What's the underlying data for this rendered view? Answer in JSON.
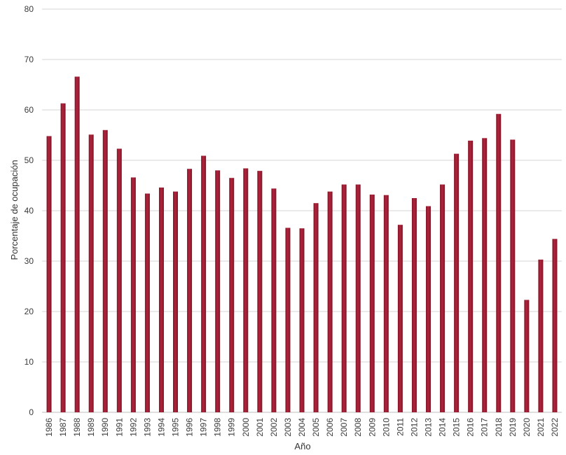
{
  "chart_data": {
    "type": "bar",
    "title": "",
    "xlabel": "Año",
    "ylabel": "Porcentaje de ocupación",
    "ylim": [
      0,
      80
    ],
    "yticks": [
      0,
      10,
      20,
      30,
      40,
      50,
      60,
      70,
      80
    ],
    "grid": true,
    "legend": "none",
    "colors": {
      "bar": "#b2243c",
      "bar_shade": "#7e1628",
      "grid": "#d4d4d4"
    },
    "categories": [
      "1986",
      "1987",
      "1988",
      "1989",
      "1990",
      "1991",
      "1992",
      "1993",
      "1994",
      "1995",
      "1996",
      "1997",
      "1998",
      "1999",
      "2000",
      "2001",
      "2002",
      "2003",
      "2004",
      "2005",
      "2006",
      "2007",
      "2008",
      "2009",
      "2010",
      "2011",
      "2012",
      "2013",
      "2014",
      "2015",
      "2016",
      "2017",
      "2018",
      "2019",
      "2020",
      "2021",
      "2022"
    ],
    "values": [
      54.8,
      61.3,
      66.6,
      55.1,
      56.0,
      52.3,
      46.6,
      43.4,
      44.6,
      43.8,
      48.3,
      50.9,
      48.0,
      46.5,
      48.4,
      47.9,
      44.4,
      36.6,
      36.5,
      41.5,
      43.8,
      45.2,
      45.2,
      43.2,
      43.1,
      37.2,
      42.5,
      40.9,
      45.2,
      51.3,
      53.9,
      54.4,
      59.2,
      54.1,
      22.3,
      30.3,
      34.4
    ]
  }
}
